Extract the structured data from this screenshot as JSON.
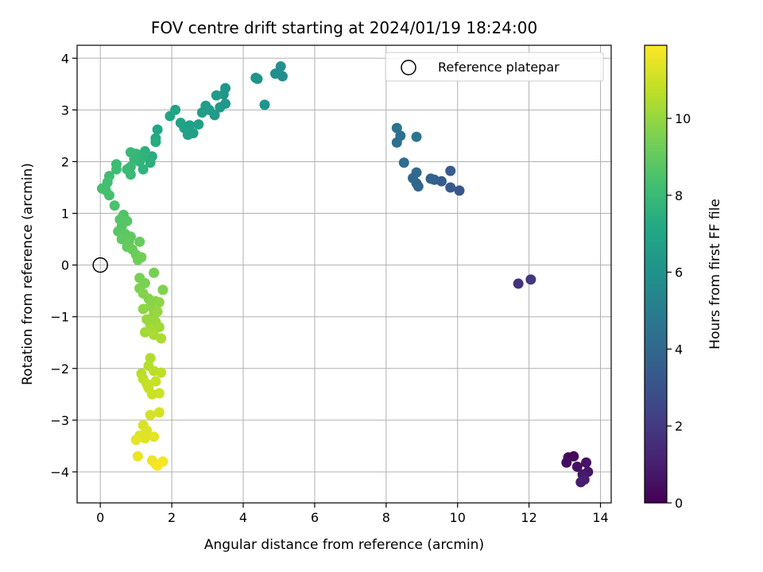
{
  "chart_data": {
    "type": "scatter",
    "title": "FOV centre drift starting at 2024/01/19 18:24:00",
    "xlabel": "Angular distance from reference (arcmin)",
    "ylabel": "Rotation from reference (arcmin)",
    "xlim": [
      -0.65,
      14.3
    ],
    "ylim": [
      -4.6,
      4.25
    ],
    "xticks": [
      0,
      2,
      4,
      6,
      8,
      10,
      12,
      14
    ],
    "yticks": [
      -4,
      -3,
      -2,
      -1,
      0,
      1,
      2,
      3,
      4
    ],
    "grid": true,
    "legend": {
      "placement": "top-right",
      "entries": [
        {
          "label": "Reference platepar",
          "marker": "open-circle"
        }
      ]
    },
    "colorbar": {
      "label": "Hours from first FF file",
      "colormap": "viridis",
      "range": [
        0,
        11.9
      ],
      "ticks": [
        0,
        2,
        4,
        6,
        8,
        10
      ]
    },
    "reference_point": {
      "x": 0,
      "y": 0
    },
    "points": [
      {
        "x": 13.1,
        "y": -3.72,
        "t": 0.2
      },
      {
        "x": 13.25,
        "y": -3.7,
        "t": 0.3
      },
      {
        "x": 13.05,
        "y": -3.82,
        "t": 0.4
      },
      {
        "x": 13.35,
        "y": -3.9,
        "t": 0.5
      },
      {
        "x": 13.6,
        "y": -3.82,
        "t": 0.6
      },
      {
        "x": 13.65,
        "y": -4.0,
        "t": 0.7
      },
      {
        "x": 13.5,
        "y": -4.05,
        "t": 0.8
      },
      {
        "x": 13.45,
        "y": -4.2,
        "t": 0.9
      },
      {
        "x": 13.55,
        "y": -4.15,
        "t": 1.0
      },
      {
        "x": 11.7,
        "y": -0.36,
        "t": 1.7
      },
      {
        "x": 12.05,
        "y": -0.28,
        "t": 1.9
      },
      {
        "x": 10.05,
        "y": 1.44,
        "t": 3.2
      },
      {
        "x": 9.8,
        "y": 1.5,
        "t": 3.3
      },
      {
        "x": 9.55,
        "y": 1.62,
        "t": 3.4
      },
      {
        "x": 9.8,
        "y": 1.82,
        "t": 3.5
      },
      {
        "x": 9.35,
        "y": 1.65,
        "t": 3.6
      },
      {
        "x": 9.25,
        "y": 1.67,
        "t": 3.7
      },
      {
        "x": 8.9,
        "y": 1.52,
        "t": 3.8
      },
      {
        "x": 8.85,
        "y": 1.58,
        "t": 3.9
      },
      {
        "x": 8.75,
        "y": 1.68,
        "t": 4.0
      },
      {
        "x": 8.85,
        "y": 1.79,
        "t": 4.1
      },
      {
        "x": 8.5,
        "y": 1.98,
        "t": 4.2
      },
      {
        "x": 8.3,
        "y": 2.37,
        "t": 4.3
      },
      {
        "x": 8.4,
        "y": 2.5,
        "t": 4.4
      },
      {
        "x": 8.3,
        "y": 2.65,
        "t": 4.5
      },
      {
        "x": 8.85,
        "y": 2.48,
        "t": 4.6
      },
      {
        "x": 5.1,
        "y": 3.65,
        "t": 5.8
      },
      {
        "x": 5.05,
        "y": 3.84,
        "t": 5.85
      },
      {
        "x": 4.9,
        "y": 3.7,
        "t": 5.9
      },
      {
        "x": 4.4,
        "y": 3.6,
        "t": 6.0
      },
      {
        "x": 4.35,
        "y": 3.62,
        "t": 6.05
      },
      {
        "x": 4.6,
        "y": 3.1,
        "t": 6.1
      },
      {
        "x": 3.5,
        "y": 3.42,
        "t": 6.2
      },
      {
        "x": 3.45,
        "y": 3.3,
        "t": 6.25
      },
      {
        "x": 3.5,
        "y": 3.12,
        "t": 6.3
      },
      {
        "x": 3.35,
        "y": 3.05,
        "t": 6.35
      },
      {
        "x": 3.2,
        "y": 2.9,
        "t": 6.4
      },
      {
        "x": 3.25,
        "y": 3.28,
        "t": 6.45
      },
      {
        "x": 3.05,
        "y": 3.0,
        "t": 6.5
      },
      {
        "x": 2.95,
        "y": 3.08,
        "t": 6.55
      },
      {
        "x": 2.85,
        "y": 2.95,
        "t": 6.6
      },
      {
        "x": 2.75,
        "y": 2.72,
        "t": 6.65
      },
      {
        "x": 2.6,
        "y": 2.55,
        "t": 6.7
      },
      {
        "x": 2.5,
        "y": 2.7,
        "t": 6.75
      },
      {
        "x": 2.45,
        "y": 2.52,
        "t": 6.8
      },
      {
        "x": 2.35,
        "y": 2.65,
        "t": 6.85
      },
      {
        "x": 2.25,
        "y": 2.75,
        "t": 6.9
      },
      {
        "x": 2.1,
        "y": 3.0,
        "t": 6.95
      },
      {
        "x": 1.95,
        "y": 2.88,
        "t": 7.0
      },
      {
        "x": 1.6,
        "y": 2.62,
        "t": 7.1
      },
      {
        "x": 1.55,
        "y": 2.45,
        "t": 7.2
      },
      {
        "x": 1.55,
        "y": 2.38,
        "t": 7.3
      },
      {
        "x": 1.45,
        "y": 2.1,
        "t": 7.4
      },
      {
        "x": 1.4,
        "y": 1.98,
        "t": 7.5
      },
      {
        "x": 1.25,
        "y": 2.2,
        "t": 7.6
      },
      {
        "x": 1.2,
        "y": 2.1,
        "t": 7.65
      },
      {
        "x": 1.2,
        "y": 1.85,
        "t": 7.7
      },
      {
        "x": 1.1,
        "y": 2.0,
        "t": 7.75
      },
      {
        "x": 1.0,
        "y": 2.15,
        "t": 7.8
      },
      {
        "x": 0.95,
        "y": 2.05,
        "t": 7.85
      },
      {
        "x": 0.85,
        "y": 2.18,
        "t": 7.9
      },
      {
        "x": 0.85,
        "y": 1.9,
        "t": 7.95
      },
      {
        "x": 0.85,
        "y": 1.75,
        "t": 8.0
      },
      {
        "x": 0.75,
        "y": 1.85,
        "t": 8.05
      },
      {
        "x": 0.45,
        "y": 1.95,
        "t": 8.1
      },
      {
        "x": 0.45,
        "y": 1.85,
        "t": 8.15
      },
      {
        "x": 0.25,
        "y": 1.72,
        "t": 8.2
      },
      {
        "x": 0.2,
        "y": 1.6,
        "t": 8.25
      },
      {
        "x": 0.15,
        "y": 1.45,
        "t": 8.3
      },
      {
        "x": 0.05,
        "y": 1.48,
        "t": 8.35
      },
      {
        "x": 0.25,
        "y": 1.35,
        "t": 8.4
      },
      {
        "x": 0.4,
        "y": 1.15,
        "t": 8.5
      },
      {
        "x": 0.65,
        "y": 0.97,
        "t": 8.6
      },
      {
        "x": 0.55,
        "y": 0.88,
        "t": 8.65
      },
      {
        "x": 0.75,
        "y": 0.85,
        "t": 8.7
      },
      {
        "x": 0.6,
        "y": 0.75,
        "t": 8.75
      },
      {
        "x": 0.5,
        "y": 0.65,
        "t": 8.8
      },
      {
        "x": 0.7,
        "y": 0.6,
        "t": 8.85
      },
      {
        "x": 0.85,
        "y": 0.55,
        "t": 8.9
      },
      {
        "x": 0.6,
        "y": 0.5,
        "t": 8.95
      },
      {
        "x": 0.8,
        "y": 0.45,
        "t": 9.0
      },
      {
        "x": 0.75,
        "y": 0.35,
        "t": 9.05
      },
      {
        "x": 1.1,
        "y": 0.45,
        "t": 9.1
      },
      {
        "x": 0.9,
        "y": 0.3,
        "t": 9.15
      },
      {
        "x": 1.0,
        "y": 0.2,
        "t": 9.2
      },
      {
        "x": 1.05,
        "y": 0.1,
        "t": 9.25
      },
      {
        "x": 1.15,
        "y": 0.15,
        "t": 9.3
      },
      {
        "x": 1.5,
        "y": -0.15,
        "t": 9.4
      },
      {
        "x": 1.1,
        "y": -0.25,
        "t": 9.45
      },
      {
        "x": 1.25,
        "y": -0.35,
        "t": 9.5
      },
      {
        "x": 1.1,
        "y": -0.45,
        "t": 9.55
      },
      {
        "x": 1.75,
        "y": -0.48,
        "t": 9.6
      },
      {
        "x": 1.2,
        "y": -0.55,
        "t": 9.65
      },
      {
        "x": 1.35,
        "y": -0.65,
        "t": 9.7
      },
      {
        "x": 1.55,
        "y": -0.7,
        "t": 9.75
      },
      {
        "x": 1.4,
        "y": -0.8,
        "t": 9.8
      },
      {
        "x": 1.65,
        "y": -0.72,
        "t": 9.85
      },
      {
        "x": 1.2,
        "y": -0.85,
        "t": 9.9
      },
      {
        "x": 1.5,
        "y": -0.95,
        "t": 9.95
      },
      {
        "x": 1.6,
        "y": -0.9,
        "t": 10.0
      },
      {
        "x": 1.3,
        "y": -1.05,
        "t": 10.05
      },
      {
        "x": 1.4,
        "y": -1.15,
        "t": 10.1
      },
      {
        "x": 1.55,
        "y": -1.1,
        "t": 10.15
      },
      {
        "x": 1.65,
        "y": -1.2,
        "t": 10.2
      },
      {
        "x": 1.25,
        "y": -1.3,
        "t": 10.25
      },
      {
        "x": 1.4,
        "y": -1.25,
        "t": 10.3
      },
      {
        "x": 1.5,
        "y": -1.35,
        "t": 10.35
      },
      {
        "x": 1.7,
        "y": -1.42,
        "t": 10.4
      },
      {
        "x": 1.4,
        "y": -1.8,
        "t": 10.5
      },
      {
        "x": 1.35,
        "y": -1.95,
        "t": 10.55
      },
      {
        "x": 1.15,
        "y": -2.1,
        "t": 10.6
      },
      {
        "x": 1.5,
        "y": -2.05,
        "t": 10.65
      },
      {
        "x": 1.7,
        "y": -2.08,
        "t": 10.7
      },
      {
        "x": 1.2,
        "y": -2.2,
        "t": 10.75
      },
      {
        "x": 1.3,
        "y": -2.3,
        "t": 10.8
      },
      {
        "x": 1.55,
        "y": -2.25,
        "t": 10.85
      },
      {
        "x": 1.35,
        "y": -2.38,
        "t": 10.9
      },
      {
        "x": 1.45,
        "y": -2.5,
        "t": 10.95
      },
      {
        "x": 1.65,
        "y": -2.48,
        "t": 11.0
      },
      {
        "x": 1.4,
        "y": -2.9,
        "t": 11.1
      },
      {
        "x": 1.65,
        "y": -2.85,
        "t": 11.15
      },
      {
        "x": 1.2,
        "y": -3.1,
        "t": 11.2
      },
      {
        "x": 1.3,
        "y": -3.2,
        "t": 11.25
      },
      {
        "x": 1.1,
        "y": -3.3,
        "t": 11.3
      },
      {
        "x": 1.25,
        "y": -3.35,
        "t": 11.35
      },
      {
        "x": 1.5,
        "y": -3.32,
        "t": 11.4
      },
      {
        "x": 1.0,
        "y": -3.38,
        "t": 11.45
      },
      {
        "x": 1.05,
        "y": -3.7,
        "t": 11.55
      },
      {
        "x": 1.45,
        "y": -3.78,
        "t": 11.6
      },
      {
        "x": 1.55,
        "y": -3.85,
        "t": 11.65
      },
      {
        "x": 1.75,
        "y": -3.8,
        "t": 11.7
      },
      {
        "x": 1.6,
        "y": -3.88,
        "t": 11.8
      }
    ]
  }
}
